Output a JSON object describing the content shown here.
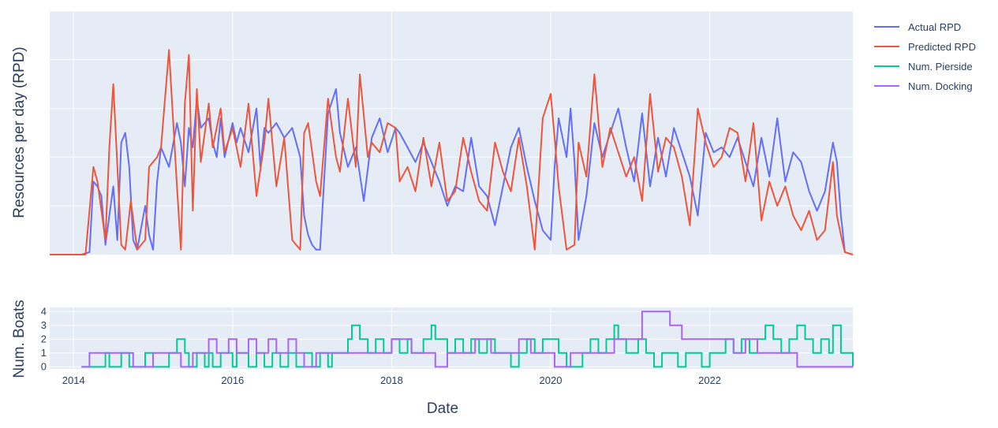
{
  "chart_data": {
    "type": "line",
    "xlabel": "Date",
    "x_ticks": [
      "2014",
      "2016",
      "2018",
      "2020",
      "2022"
    ],
    "x_range": [
      2013.7,
      2023.8
    ],
    "panels": [
      {
        "ylabel": "Resources per day (RPD)",
        "ylim": [
          0,
          5
        ],
        "y_ticks_labeled": false,
        "grid": true,
        "series_order": [
          "Actual RPD",
          "Predicted RPD"
        ],
        "series_data": {
          "Actual RPD": {
            "x": [
              2013.7,
              2014.1,
              2014.2,
              2014.25,
              2014.3,
              2014.35,
              2014.4,
              2014.5,
              2014.55,
              2014.6,
              2014.65,
              2014.7,
              2014.75,
              2014.8,
              2014.9,
              2014.95,
              2015.0,
              2015.05,
              2015.1,
              2015.2,
              2015.3,
              2015.35,
              2015.4,
              2015.45,
              2015.5,
              2015.55,
              2015.6,
              2015.7,
              2015.75,
              2015.8,
              2015.85,
              2015.9,
              2016.0,
              2016.05,
              2016.1,
              2016.2,
              2016.3,
              2016.35,
              2016.4,
              2016.45,
              2016.55,
              2016.65,
              2016.75,
              2016.85,
              2016.9,
              2016.95,
              2017.0,
              2017.05,
              2017.1,
              2017.2,
              2017.3,
              2017.35,
              2017.45,
              2017.55,
              2017.65,
              2017.75,
              2017.85,
              2017.95,
              2018.05,
              2018.1,
              2018.2,
              2018.3,
              2018.4,
              2018.5,
              2018.6,
              2018.7,
              2018.8,
              2018.9,
              2019.0,
              2019.1,
              2019.2,
              2019.3,
              2019.4,
              2019.5,
              2019.6,
              2019.7,
              2019.8,
              2019.85,
              2019.9,
              2020.0,
              2020.05,
              2020.1,
              2020.2,
              2020.25,
              2020.3,
              2020.35,
              2020.45,
              2020.55,
              2020.65,
              2020.75,
              2020.85,
              2020.95,
              2021.05,
              2021.15,
              2021.25,
              2021.35,
              2021.45,
              2021.55,
              2021.65,
              2021.75,
              2021.85,
              2021.95,
              2022.05,
              2022.15,
              2022.25,
              2022.35,
              2022.45,
              2022.55,
              2022.65,
              2022.75,
              2022.85,
              2022.95,
              2023.05,
              2023.15,
              2023.25,
              2023.35,
              2023.45,
              2023.55,
              2023.6,
              2023.65,
              2023.7,
              2023.8
            ],
            "y": [
              0,
              0,
              0.05,
              1.5,
              1.4,
              1.2,
              0.2,
              1.4,
              0.3,
              2.3,
              2.5,
              1.8,
              0.3,
              0.1,
              1.0,
              0.4,
              0.1,
              1.5,
              2.2,
              1.8,
              2.7,
              2.3,
              1.4,
              2.6,
              2.2,
              3.2,
              2.6,
              2.8,
              2.3,
              2.0,
              2.8,
              2.0,
              2.7,
              2.3,
              2.6,
              2.1,
              3.0,
              1.8,
              2.6,
              2.5,
              2.7,
              2.4,
              2.6,
              2.0,
              0.8,
              0.4,
              0.2,
              0.1,
              0.1,
              2.9,
              3.4,
              2.5,
              1.8,
              2.2,
              1.1,
              2.4,
              2.8,
              2.1,
              2.6,
              2.5,
              2.2,
              1.9,
              2.3,
              1.9,
              1.5,
              1.0,
              1.4,
              1.3,
              2.4,
              1.4,
              1.2,
              0.6,
              1.4,
              2.2,
              2.6,
              1.8,
              1.1,
              0.8,
              0.5,
              0.3,
              1.8,
              2.8,
              2.0,
              3.0,
              1.9,
              0.3,
              1.2,
              2.7,
              2.0,
              2.5,
              3.0,
              2.2,
              1.5,
              2.9,
              1.4,
              2.4,
              1.6,
              2.6,
              2.1,
              1.6,
              0.8,
              2.5,
              2.1,
              2.2,
              2.0,
              2.4,
              1.9,
              1.4,
              2.4,
              1.6,
              2.8,
              1.5,
              2.1,
              1.9,
              1.3,
              0.9,
              1.3,
              2.3,
              1.9,
              0.8,
              0.05,
              0
            ]
          },
          "Predicted RPD": {
            "x": [
              2013.7,
              2014.15,
              2014.25,
              2014.3,
              2014.4,
              2014.45,
              2014.5,
              2014.6,
              2014.65,
              2014.72,
              2014.8,
              2014.9,
              2014.95,
              2015.05,
              2015.1,
              2015.2,
              2015.3,
              2015.35,
              2015.4,
              2015.45,
              2015.5,
              2015.55,
              2015.6,
              2015.7,
              2015.75,
              2015.85,
              2015.9,
              2016.0,
              2016.1,
              2016.2,
              2016.3,
              2016.4,
              2016.45,
              2016.55,
              2016.65,
              2016.75,
              2016.85,
              2016.9,
              2016.95,
              2017.05,
              2017.1,
              2017.2,
              2017.3,
              2017.35,
              2017.45,
              2017.55,
              2017.6,
              2017.7,
              2017.75,
              2017.85,
              2017.95,
              2018.05,
              2018.1,
              2018.2,
              2018.3,
              2018.4,
              2018.5,
              2018.6,
              2018.7,
              2018.8,
              2018.9,
              2019.0,
              2019.1,
              2019.2,
              2019.3,
              2019.4,
              2019.5,
              2019.6,
              2019.7,
              2019.8,
              2019.9,
              2020.0,
              2020.05,
              2020.1,
              2020.2,
              2020.3,
              2020.35,
              2020.45,
              2020.55,
              2020.65,
              2020.75,
              2020.85,
              2020.95,
              2021.05,
              2021.15,
              2021.25,
              2021.35,
              2021.45,
              2021.55,
              2021.65,
              2021.75,
              2021.85,
              2021.95,
              2022.05,
              2022.15,
              2022.25,
              2022.35,
              2022.45,
              2022.55,
              2022.65,
              2022.75,
              2022.85,
              2022.95,
              2023.05,
              2023.15,
              2023.25,
              2023.35,
              2023.45,
              2023.55,
              2023.6,
              2023.65,
              2023.7,
              2023.8
            ],
            "y": [
              0,
              0,
              1.8,
              1.5,
              0.3,
              2.2,
              3.5,
              0.2,
              0.1,
              1.1,
              0.1,
              0.3,
              1.8,
              2.0,
              2.2,
              4.2,
              1.4,
              0.1,
              3.1,
              4.1,
              0.9,
              3.4,
              1.9,
              3.1,
              2.2,
              3.0,
              2.1,
              2.6,
              1.8,
              3.1,
              1.2,
              2.3,
              3.2,
              1.4,
              2.4,
              0.3,
              0.1,
              2.5,
              2.7,
              1.5,
              1.2,
              3.2,
              2.0,
              1.7,
              3.2,
              1.8,
              3.7,
              2.0,
              2.3,
              2.1,
              2.7,
              2.6,
              1.5,
              1.8,
              1.3,
              2.4,
              1.4,
              2.3,
              1.1,
              1.3,
              2.4,
              1.7,
              1.1,
              0.9,
              2.3,
              1.7,
              1.3,
              2.4,
              1.4,
              0.1,
              2.8,
              3.3,
              2.4,
              1.4,
              0.1,
              0.2,
              2.3,
              1.6,
              3.7,
              1.8,
              2.6,
              2.1,
              1.6,
              2.0,
              1.1,
              3.3,
              1.7,
              2.4,
              2.2,
              1.6,
              0.6,
              3.0,
              2.3,
              1.8,
              2.0,
              2.6,
              2.5,
              1.5,
              2.7,
              0.7,
              1.5,
              1.0,
              1.4,
              0.8,
              0.5,
              0.9,
              0.3,
              0.5,
              1.9,
              0.8,
              0.4,
              0.05,
              0
            ]
          }
        }
      },
      {
        "ylabel": "Num. Boats",
        "y_ticks": [
          "0",
          "1",
          "2",
          "3",
          "4"
        ],
        "ylim": [
          -0.15,
          4.3
        ],
        "grid": true,
        "series_order": [
          "Num. Pierside",
          "Num. Docking"
        ],
        "series_data": {
          "Num. Pierside": {
            "x": [
              2014.1,
              2014.4,
              2014.45,
              2014.6,
              2014.7,
              2014.9,
              2015.0,
              2015.2,
              2015.3,
              2015.4,
              2015.45,
              2015.55,
              2015.65,
              2015.7,
              2015.75,
              2015.85,
              2016.0,
              2016.05,
              2016.2,
              2016.3,
              2016.4,
              2016.5,
              2016.6,
              2016.7,
              2016.8,
              2016.9,
              2017.0,
              2017.1,
              2017.2,
              2017.25,
              2017.45,
              2017.5,
              2017.6,
              2017.7,
              2017.8,
              2017.9,
              2018.0,
              2018.1,
              2018.2,
              2018.25,
              2018.4,
              2018.5,
              2018.55,
              2018.7,
              2018.8,
              2018.9,
              2019.0,
              2019.1,
              2019.2,
              2019.3,
              2019.5,
              2019.6,
              2019.7,
              2019.8,
              2019.9,
              2020.1,
              2020.2,
              2020.4,
              2020.5,
              2020.6,
              2020.7,
              2020.8,
              2020.85,
              2020.95,
              2021.1,
              2021.2,
              2021.3,
              2021.4,
              2021.6,
              2021.7,
              2021.9,
              2022.0,
              2022.2,
              2022.3,
              2022.4,
              2022.5,
              2022.6,
              2022.7,
              2022.8,
              2022.9,
              2023.0,
              2023.1,
              2023.2,
              2023.3,
              2023.4,
              2023.5,
              2023.55,
              2023.65,
              2023.8
            ],
            "y": [
              0,
              1,
              0,
              1,
              0,
              1,
              0,
              1,
              2,
              1,
              0,
              1,
              0,
              1,
              0,
              1,
              0,
              1,
              0,
              1,
              0,
              1,
              0,
              1,
              0,
              1,
              0,
              1,
              0,
              1,
              2,
              3,
              2,
              1,
              2,
              1,
              2,
              1,
              2,
              1,
              2,
              3,
              2,
              1,
              2,
              1,
              2,
              1,
              2,
              1,
              0,
              1,
              2,
              1,
              2,
              1,
              0,
              1,
              2,
              1,
              2,
              3,
              2,
              1,
              2,
              1,
              0,
              1,
              0,
              1,
              0,
              1,
              2,
              1,
              2,
              1,
              2,
              3,
              2,
              1,
              2,
              3,
              2,
              1,
              2,
              1,
              3,
              1,
              0
            ]
          },
          "Num. Docking": {
            "x": [
              2014.1,
              2014.2,
              2014.5,
              2014.75,
              2014.9,
              2015.0,
              2015.2,
              2015.35,
              2015.5,
              2015.7,
              2015.8,
              2015.95,
              2016.05,
              2016.2,
              2016.3,
              2016.45,
              2016.55,
              2016.7,
              2016.8,
              2016.9,
              2017.05,
              2017.2,
              2017.35,
              2017.5,
              2017.7,
              2017.9,
              2018.0,
              2018.1,
              2018.25,
              2018.4,
              2018.55,
              2018.7,
              2018.85,
              2019.05,
              2019.25,
              2019.45,
              2019.6,
              2019.75,
              2019.85,
              2020.05,
              2020.15,
              2020.25,
              2020.45,
              2020.6,
              2020.8,
              2020.95,
              2021.15,
              2021.3,
              2021.5,
              2021.65,
              2021.8,
              2021.95,
              2022.1,
              2022.3,
              2022.45,
              2022.6,
              2022.75,
              2022.95,
              2023.1,
              2023.3,
              2023.5,
              2023.8
            ],
            "y": [
              0,
              1,
              1,
              0,
              0,
              1,
              1,
              0,
              1,
              2,
              1,
              2,
              1,
              2,
              1,
              2,
              1,
              2,
              1,
              0,
              1,
              1,
              1,
              1,
              1,
              1,
              2,
              2,
              1,
              1,
              0,
              1,
              1,
              2,
              1,
              1,
              2,
              1,
              1,
              0,
              0,
              1,
              1,
              1,
              2,
              2,
              4,
              4,
              3,
              2,
              2,
              2,
              2,
              1,
              2,
              1,
              1,
              1,
              0,
              0,
              0,
              0
            ]
          }
        }
      }
    ],
    "legend": {
      "placement": "top-right",
      "entries": [
        "Actual RPD",
        "Predicted RPD",
        "Num. Pierside",
        "Num. Docking"
      ]
    },
    "colors": {
      "Actual RPD": "#636efa",
      "Predicted RPD": "#ef553b",
      "Num. Pierside": "#00cc96",
      "Num. Docking": "#ab63fa",
      "plot_bg": "#e5ecf6",
      "grid": "#ffffff",
      "text": "#2a3f5f"
    }
  }
}
